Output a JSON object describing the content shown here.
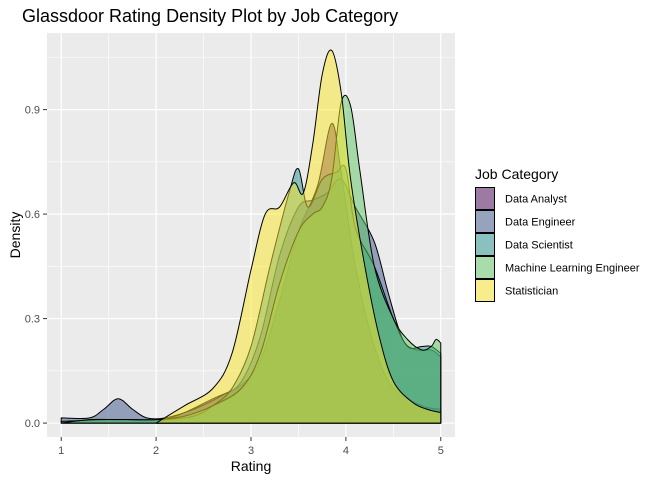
{
  "chart_data": {
    "type": "area",
    "title": "Glassdoor Rating Density Plot by Job Category",
    "xlabel": "Rating",
    "ylabel": "Density",
    "xlim": [
      0.85,
      5.15
    ],
    "ylim": [
      -0.04,
      1.12
    ],
    "xticks": [
      1,
      2,
      3,
      4,
      5
    ],
    "yticks": [
      0.0,
      0.3,
      0.6,
      0.9
    ],
    "xtick_labels": [
      "1",
      "2",
      "3",
      "4",
      "5"
    ],
    "ytick_labels": [
      "0.0",
      "0.3",
      "0.6",
      "0.9"
    ],
    "grid": true,
    "legend": {
      "title": "Job Category",
      "position": "right"
    },
    "fill_opacity": 0.5,
    "series": [
      {
        "name": "Data Analyst",
        "color": "#440154",
        "points": [
          [
            2.0,
            0.0
          ],
          [
            2.3,
            0.03
          ],
          [
            2.6,
            0.07
          ],
          [
            2.9,
            0.11
          ],
          [
            3.1,
            0.18
          ],
          [
            3.3,
            0.35
          ],
          [
            3.5,
            0.55
          ],
          [
            3.7,
            0.68
          ],
          [
            3.85,
            0.86
          ],
          [
            3.95,
            0.72
          ],
          [
            4.1,
            0.45
          ],
          [
            4.3,
            0.22
          ],
          [
            4.5,
            0.1
          ],
          [
            4.8,
            0.05
          ],
          [
            5.0,
            0.04
          ]
        ]
      },
      {
        "name": "Data Engineer",
        "color": "#3b528b",
        "points": [
          [
            1.0,
            0.015
          ],
          [
            1.3,
            0.015
          ],
          [
            1.45,
            0.04
          ],
          [
            1.6,
            0.07
          ],
          [
            1.75,
            0.04
          ],
          [
            1.9,
            0.015
          ],
          [
            2.1,
            0.015
          ],
          [
            2.4,
            0.04
          ],
          [
            2.7,
            0.08
          ],
          [
            2.9,
            0.12
          ],
          [
            3.1,
            0.25
          ],
          [
            3.3,
            0.48
          ],
          [
            3.5,
            0.62
          ],
          [
            3.65,
            0.64
          ],
          [
            3.8,
            0.66
          ],
          [
            3.95,
            0.7
          ],
          [
            4.1,
            0.62
          ],
          [
            4.3,
            0.52
          ],
          [
            4.45,
            0.37
          ],
          [
            4.6,
            0.24
          ],
          [
            4.75,
            0.21
          ],
          [
            4.9,
            0.21
          ],
          [
            5.0,
            0.19
          ]
        ]
      },
      {
        "name": "Data Scientist",
        "color": "#21908c",
        "points": [
          [
            1.0,
            0.005
          ],
          [
            1.5,
            0.01
          ],
          [
            1.8,
            0.01
          ],
          [
            2.1,
            0.01
          ],
          [
            2.4,
            0.02
          ],
          [
            2.6,
            0.05
          ],
          [
            2.8,
            0.1
          ],
          [
            3.0,
            0.22
          ],
          [
            3.2,
            0.45
          ],
          [
            3.4,
            0.66
          ],
          [
            3.5,
            0.73
          ],
          [
            3.6,
            0.62
          ],
          [
            3.75,
            0.7
          ],
          [
            3.9,
            0.72
          ],
          [
            4.0,
            0.73
          ],
          [
            4.1,
            0.56
          ],
          [
            4.3,
            0.45
          ],
          [
            4.5,
            0.3
          ],
          [
            4.65,
            0.22
          ],
          [
            4.8,
            0.22
          ],
          [
            4.9,
            0.22
          ],
          [
            5.0,
            0.2
          ]
        ]
      },
      {
        "name": "Machine Learning Engineer",
        "color": "#5dc863",
        "points": [
          [
            1.0,
            0.0
          ],
          [
            1.3,
            0.01
          ],
          [
            1.6,
            0.01
          ],
          [
            2.0,
            0.01
          ],
          [
            2.3,
            0.02
          ],
          [
            2.6,
            0.05
          ],
          [
            2.9,
            0.1
          ],
          [
            3.1,
            0.2
          ],
          [
            3.3,
            0.4
          ],
          [
            3.5,
            0.55
          ],
          [
            3.65,
            0.6
          ],
          [
            3.75,
            0.62
          ],
          [
            3.85,
            0.7
          ],
          [
            3.95,
            0.92
          ],
          [
            4.05,
            0.91
          ],
          [
            4.15,
            0.72
          ],
          [
            4.3,
            0.45
          ],
          [
            4.5,
            0.3
          ],
          [
            4.65,
            0.24
          ],
          [
            4.8,
            0.21
          ],
          [
            4.9,
            0.22
          ],
          [
            4.95,
            0.24
          ],
          [
            5.0,
            0.23
          ]
        ]
      },
      {
        "name": "Statistician",
        "color": "#fde725",
        "points": [
          [
            2.0,
            0.0
          ],
          [
            2.3,
            0.05
          ],
          [
            2.6,
            0.1
          ],
          [
            2.8,
            0.2
          ],
          [
            3.0,
            0.44
          ],
          [
            3.15,
            0.6
          ],
          [
            3.3,
            0.62
          ],
          [
            3.45,
            0.69
          ],
          [
            3.55,
            0.66
          ],
          [
            3.65,
            0.8
          ],
          [
            3.75,
            1.0
          ],
          [
            3.85,
            1.07
          ],
          [
            3.95,
            0.95
          ],
          [
            4.05,
            0.7
          ],
          [
            4.2,
            0.45
          ],
          [
            4.35,
            0.25
          ],
          [
            4.5,
            0.12
          ],
          [
            4.7,
            0.06
          ],
          [
            4.85,
            0.04
          ],
          [
            5.0,
            0.03
          ]
        ]
      }
    ]
  },
  "colors": {
    "panel_background": "#ebebeb",
    "grid_major": "#ffffff",
    "outline": "#000000"
  }
}
